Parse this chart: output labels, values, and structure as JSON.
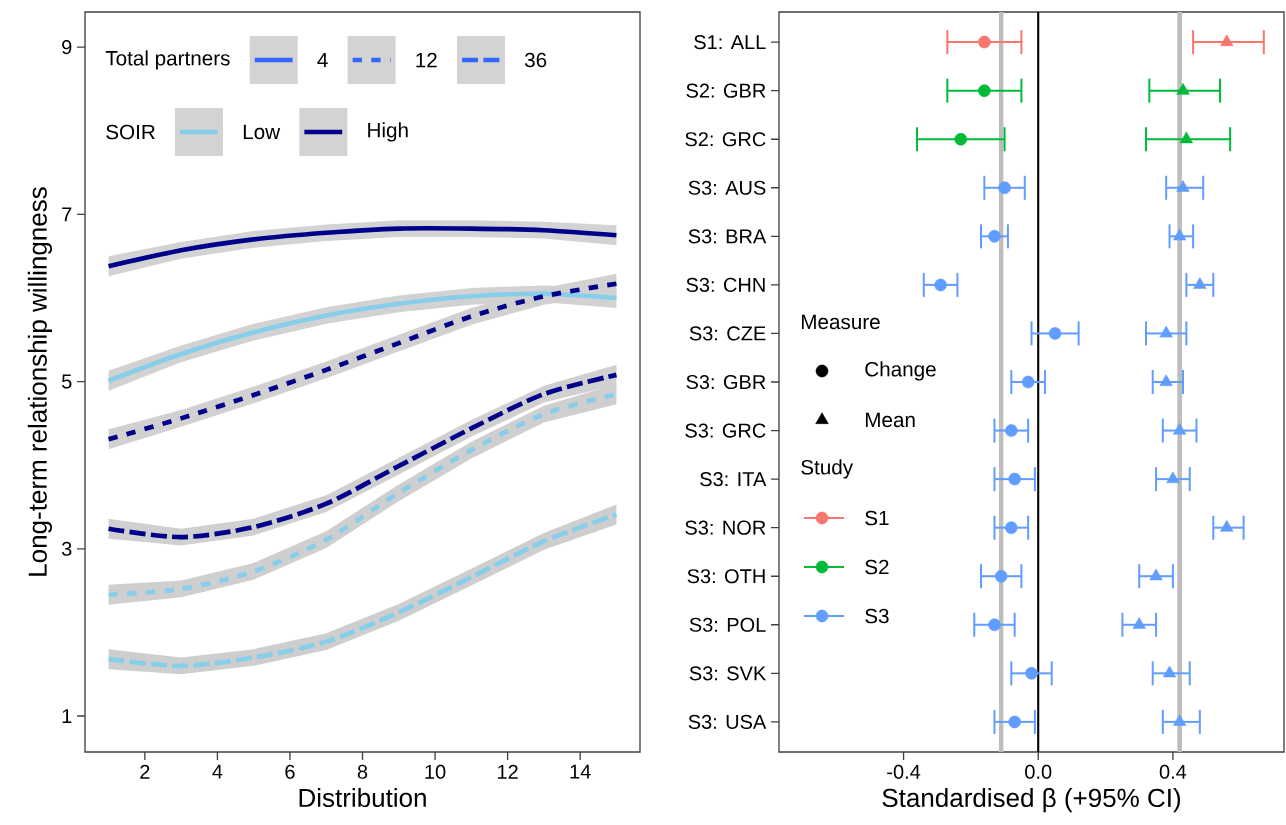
{
  "chart_data": [
    {
      "type": "line",
      "xlabel": "Distribution",
      "ylabel": "Long-term relationship willingness",
      "x": [
        1,
        3,
        5,
        7,
        9,
        11,
        13,
        15
      ],
      "xlim": [
        0.35,
        15.65
      ],
      "ylim": [
        0.57,
        9.42
      ],
      "xticks": [
        2,
        4,
        6,
        8,
        10,
        12,
        14
      ],
      "yticks": [
        1,
        3,
        5,
        7,
        9
      ],
      "legend": "top left",
      "legend_title": [
        "Total partners",
        "SOIR"
      ],
      "series": [
        {
          "color": "#00008b",
          "line_style": "solid",
          "values": [
            6.38,
            6.57,
            6.7,
            6.78,
            6.83,
            6.83,
            6.81,
            6.75
          ],
          "lower": [
            6.26,
            6.47,
            6.6,
            6.68,
            6.73,
            6.73,
            6.71,
            6.63
          ],
          "upper": [
            6.5,
            6.67,
            6.8,
            6.88,
            6.93,
            6.93,
            6.91,
            6.87
          ]
        },
        {
          "color": "#87ceeb",
          "line_style": "solid",
          "values": [
            5.01,
            5.33,
            5.59,
            5.79,
            5.93,
            6.02,
            6.05,
            6.0
          ],
          "lower": [
            4.89,
            5.23,
            5.49,
            5.69,
            5.83,
            5.92,
            5.95,
            5.88
          ],
          "upper": [
            5.13,
            5.43,
            5.69,
            5.89,
            6.03,
            6.12,
            6.15,
            6.12
          ]
        },
        {
          "color": "#00008b",
          "line_style": "dotted",
          "values": [
            4.31,
            4.56,
            4.84,
            5.14,
            5.46,
            5.78,
            6.02,
            6.17
          ],
          "lower": [
            4.19,
            4.46,
            4.74,
            5.04,
            5.36,
            5.68,
            5.92,
            6.05
          ],
          "upper": [
            4.43,
            4.66,
            4.94,
            5.24,
            5.56,
            5.88,
            6.12,
            6.29
          ]
        },
        {
          "color": "#00008b",
          "line_style": "dashed",
          "values": [
            3.24,
            3.14,
            3.26,
            3.54,
            3.99,
            4.44,
            4.85,
            5.08
          ],
          "lower": [
            3.12,
            3.04,
            3.16,
            3.44,
            3.89,
            4.34,
            4.75,
            4.96
          ],
          "upper": [
            3.36,
            3.24,
            3.36,
            3.64,
            4.09,
            4.54,
            4.95,
            5.2
          ]
        },
        {
          "color": "#87ceeb",
          "line_style": "dotted",
          "values": [
            2.45,
            2.52,
            2.73,
            3.11,
            3.67,
            4.18,
            4.61,
            4.85
          ],
          "lower": [
            2.33,
            2.42,
            2.63,
            3.01,
            3.57,
            4.08,
            4.51,
            4.73
          ],
          "upper": [
            2.57,
            2.62,
            2.83,
            3.21,
            3.77,
            4.28,
            4.71,
            4.97
          ]
        },
        {
          "color": "#87ceeb",
          "line_style": "dashed",
          "values": [
            1.68,
            1.6,
            1.7,
            1.89,
            2.24,
            2.66,
            3.09,
            3.41
          ],
          "lower": [
            1.56,
            1.5,
            1.6,
            1.79,
            2.14,
            2.56,
            2.99,
            3.29
          ],
          "upper": [
            1.8,
            1.7,
            1.8,
            1.99,
            2.34,
            2.76,
            3.19,
            3.53
          ]
        },
        {
          "name": "4",
          "color": "#3366ff",
          "line_style": "solid",
          "values": [
            null,
            null,
            null,
            null,
            null,
            null,
            null,
            null
          ]
        },
        {
          "name": "12",
          "color": "#3366ff",
          "line_style": "dotted",
          "values": [
            null,
            null,
            null,
            null,
            null,
            null,
            null,
            null
          ]
        },
        {
          "name": "36",
          "color": "#3366ff",
          "line_style": "dashed",
          "values": [
            null,
            null,
            null,
            null,
            null,
            null,
            null,
            null
          ]
        },
        {
          "name": "Low",
          "color": "#87ceeb",
          "line_style": "solid",
          "values": [
            null,
            null,
            null,
            null,
            null,
            null,
            null,
            null
          ]
        },
        {
          "name": "High",
          "color": "#00008b",
          "line_style": "solid",
          "values": [
            null,
            null,
            null,
            null,
            null,
            null,
            null,
            null
          ]
        }
      ]
    },
    {
      "type": "scatter",
      "orientation": "horizontal",
      "xlabel": "Standardised β (+95% CI)",
      "categories": [
        "S1: ALL",
        "S2: GBR",
        "S2: GRC",
        "S3: AUS",
        "S3: BRA",
        "S3: CHN",
        "S3: CZE",
        "S3: GBR",
        "S3: GRC",
        "S3: ITA",
        "S3: NOR",
        "S3: OTH",
        "S3: POL",
        "S3: SVK",
        "S3: USA"
      ],
      "xlim": [
        -0.77,
        0.73
      ],
      "xticks": [
        -0.4,
        {
          "value": 0,
          "label": "0.0"
        },
        0.4
      ],
      "legend": "left",
      "legend_title": [
        "Measure",
        "Study"
      ],
      "ref_lines": [
        {
          "axis": "x",
          "value": -0.11,
          "color": "#bdbdbd"
        },
        {
          "axis": "x",
          "value": 0.42,
          "color": "#bdbdbd"
        },
        {
          "axis": "x",
          "value": 0,
          "color": "#000000"
        }
      ],
      "series": [
        {
          "name": "Change",
          "color": "#000000",
          "marker": "circle",
          "values": [
            null,
            null,
            null,
            null,
            null,
            null,
            null,
            null,
            null,
            null,
            null,
            null,
            null,
            null,
            null
          ]
        },
        {
          "name": "Mean",
          "color": "#000000",
          "marker": "triangle",
          "values": [
            null,
            null,
            null,
            null,
            null,
            null,
            null,
            null,
            null,
            null,
            null,
            null,
            null,
            null,
            null
          ]
        },
        {
          "name": "S1",
          "color": "#f8766d",
          "marker": "circle",
          "values": [
            -0.16,
            null,
            null,
            null,
            null,
            null,
            null,
            null,
            null,
            null,
            null,
            null,
            null,
            null,
            null
          ],
          "errors": [
            [
              -0.27,
              -0.05
            ],
            null,
            null,
            null,
            null,
            null,
            null,
            null,
            null,
            null,
            null,
            null,
            null,
            null,
            null
          ]
        },
        {
          "name": "S2",
          "color": "#00ba38",
          "marker": "circle",
          "values": [
            null,
            -0.16,
            -0.23,
            null,
            null,
            null,
            null,
            null,
            null,
            null,
            null,
            null,
            null,
            null,
            null
          ],
          "errors": [
            null,
            [
              -0.27,
              -0.05
            ],
            [
              -0.36,
              -0.1
            ],
            null,
            null,
            null,
            null,
            null,
            null,
            null,
            null,
            null,
            null,
            null,
            null
          ]
        },
        {
          "name": "S3",
          "color": "#619cff",
          "marker": "circle",
          "values": [
            null,
            null,
            null,
            -0.1,
            -0.13,
            -0.29,
            0.05,
            -0.03,
            -0.08,
            -0.07,
            -0.08,
            -0.11,
            -0.13,
            -0.02,
            -0.07
          ],
          "errors": [
            null,
            null,
            null,
            [
              -0.16,
              -0.04
            ],
            [
              -0.17,
              -0.09
            ],
            [
              -0.34,
              -0.24
            ],
            [
              -0.02,
              0.12
            ],
            [
              -0.08,
              0.02
            ],
            [
              -0.13,
              -0.03
            ],
            [
              -0.13,
              -0.01
            ],
            [
              -0.13,
              -0.03
            ],
            [
              -0.17,
              -0.05
            ],
            [
              -0.19,
              -0.07
            ],
            [
              -0.08,
              0.04
            ],
            [
              -0.13,
              -0.01
            ]
          ]
        },
        {
          "color": "#f8766d",
          "marker": "triangle",
          "values": [
            0.56,
            null,
            null,
            null,
            null,
            null,
            null,
            null,
            null,
            null,
            null,
            null,
            null,
            null,
            null
          ],
          "errors": [
            [
              0.46,
              0.67
            ],
            null,
            null,
            null,
            null,
            null,
            null,
            null,
            null,
            null,
            null,
            null,
            null,
            null,
            null
          ]
        },
        {
          "color": "#00ba38",
          "marker": "triangle",
          "values": [
            null,
            0.43,
            0.44,
            null,
            null,
            null,
            null,
            null,
            null,
            null,
            null,
            null,
            null,
            null,
            null
          ],
          "errors": [
            null,
            [
              0.33,
              0.54
            ],
            [
              0.32,
              0.57
            ],
            null,
            null,
            null,
            null,
            null,
            null,
            null,
            null,
            null,
            null,
            null,
            null
          ]
        },
        {
          "color": "#619cff",
          "marker": "triangle",
          "values": [
            null,
            null,
            null,
            0.43,
            0.42,
            0.48,
            0.38,
            0.38,
            0.42,
            0.4,
            0.56,
            0.35,
            0.3,
            0.39,
            0.42
          ],
          "errors": [
            null,
            null,
            null,
            [
              0.38,
              0.49
            ],
            [
              0.39,
              0.46
            ],
            [
              0.44,
              0.52
            ],
            [
              0.32,
              0.44
            ],
            [
              0.34,
              0.43
            ],
            [
              0.37,
              0.47
            ],
            [
              0.35,
              0.45
            ],
            [
              0.52,
              0.61
            ],
            [
              0.3,
              0.4
            ],
            [
              0.25,
              0.35
            ],
            [
              0.34,
              0.45
            ],
            [
              0.37,
              0.48
            ]
          ]
        }
      ]
    }
  ]
}
